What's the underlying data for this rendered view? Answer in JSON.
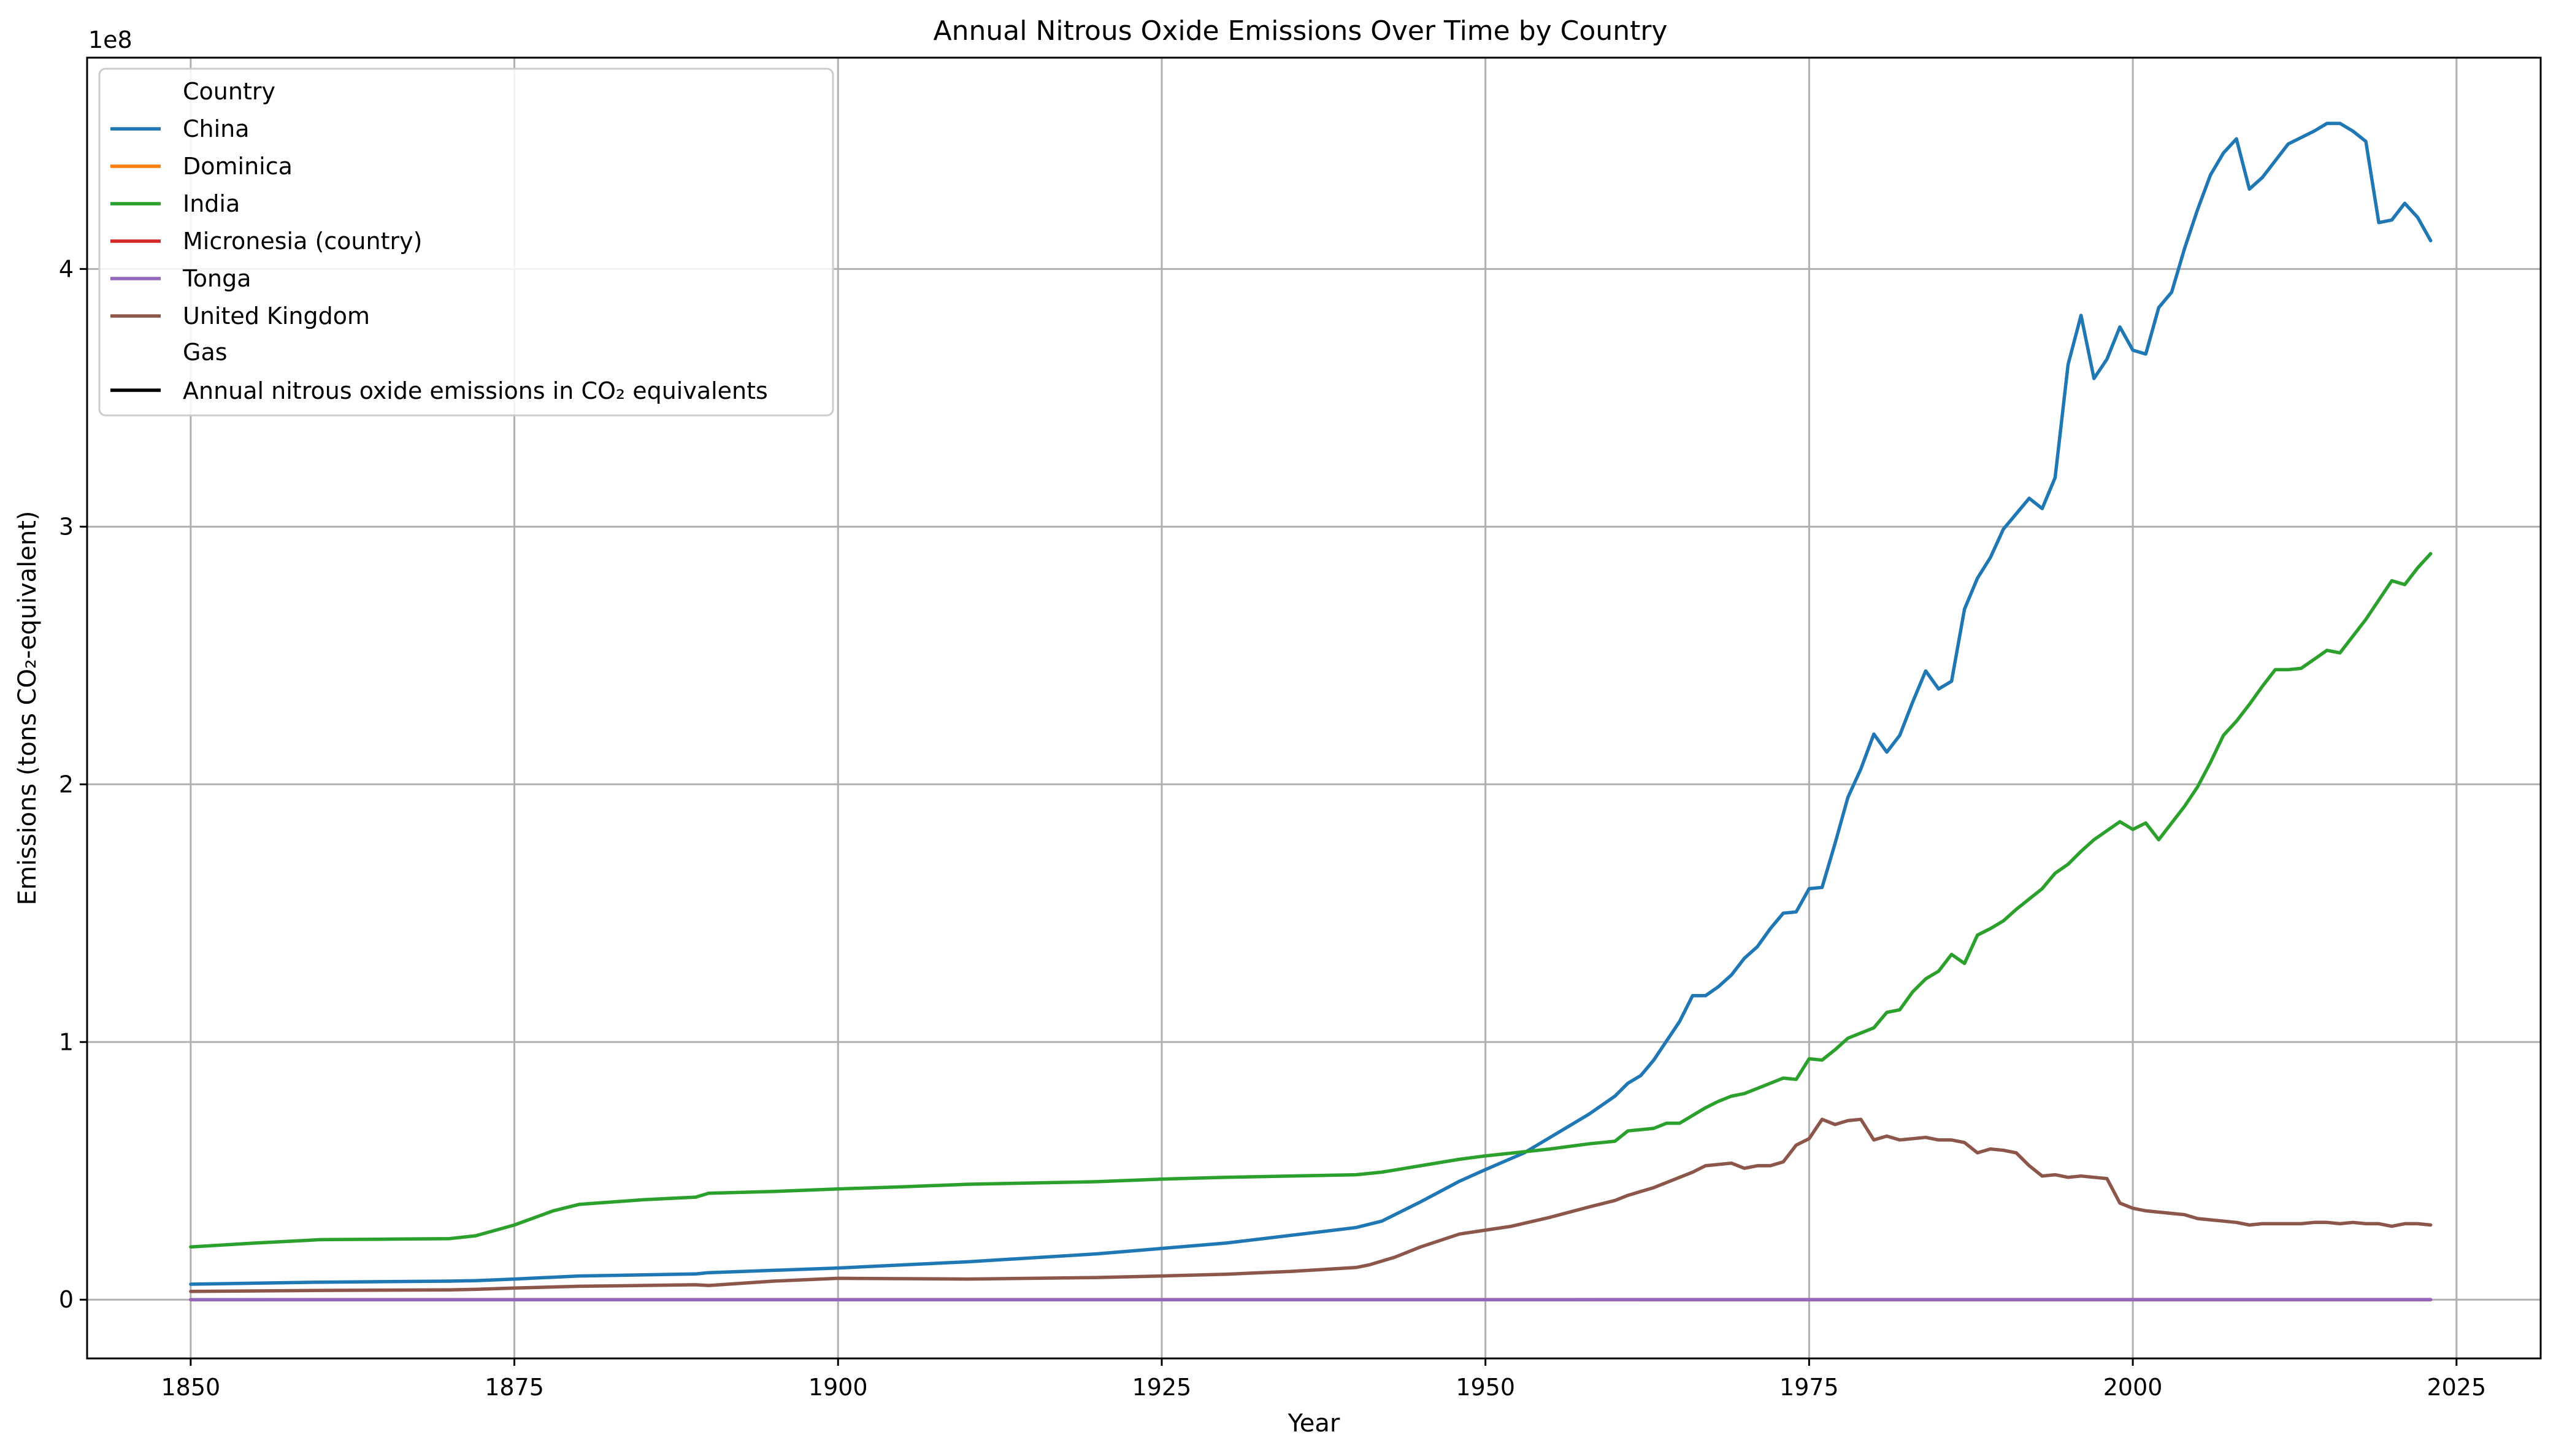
{
  "chart_data": {
    "type": "line",
    "title": "Annual Nitrous Oxide Emissions Over Time by Country",
    "xlabel": "Year",
    "ylabel": "Emissions (tons CO₂-equivalent)",
    "y_offset_label": "1e8",
    "xlim": [
      1842,
      2031.5
    ],
    "ylim": [
      -22800000,
      482000000
    ],
    "x_ticks": [
      1850,
      1875,
      1900,
      1925,
      1950,
      1975,
      2000,
      2025
    ],
    "x_tick_labels": [
      "1850",
      "1875",
      "1900",
      "1925",
      "1950",
      "1975",
      "2000",
      "2025"
    ],
    "y_ticks": [
      0,
      100000000,
      200000000,
      300000000,
      400000000
    ],
    "y_tick_labels": [
      "0",
      "1",
      "2",
      "3",
      "4"
    ],
    "grid": true,
    "legend": {
      "placement": "top-left",
      "country_title": "Country",
      "gas_title": "Gas",
      "gas_entry": "Annual nitrous oxide emissions in CO₂ equivalents",
      "gas_color": "#000000"
    },
    "series": [
      {
        "name": "China",
        "color": "#1f77b4",
        "points": [
          [
            1850,
            6000000
          ],
          [
            1860,
            6800000
          ],
          [
            1870,
            7200000
          ],
          [
            1872,
            7400000
          ],
          [
            1875,
            8000000
          ],
          [
            1880,
            9200000
          ],
          [
            1889,
            10000000
          ],
          [
            1890,
            10500000
          ],
          [
            1900,
            12300000
          ],
          [
            1910,
            14700000
          ],
          [
            1920,
            17800000
          ],
          [
            1930,
            22000000
          ],
          [
            1940,
            28000000
          ],
          [
            1942,
            30500000
          ],
          [
            1945,
            38000000
          ],
          [
            1948,
            46000000
          ],
          [
            1950,
            50500000
          ],
          [
            1953,
            57000000
          ],
          [
            1955,
            63000000
          ],
          [
            1958,
            72000000
          ],
          [
            1960,
            79000000
          ],
          [
            1961,
            84000000
          ],
          [
            1962,
            87000000
          ],
          [
            1963,
            93000000
          ],
          [
            1964,
            100500000
          ],
          [
            1965,
            108000000
          ],
          [
            1966,
            118000000
          ],
          [
            1967,
            118000000
          ],
          [
            1968,
            121500000
          ],
          [
            1969,
            126000000
          ],
          [
            1970,
            132500000
          ],
          [
            1971,
            137000000
          ],
          [
            1972,
            144000000
          ],
          [
            1973,
            150000000
          ],
          [
            1974,
            150500000
          ],
          [
            1975,
            159500000
          ],
          [
            1976,
            160000000
          ],
          [
            1977,
            177000000
          ],
          [
            1978,
            195000000
          ],
          [
            1979,
            206000000
          ],
          [
            1980,
            219500000
          ],
          [
            1981,
            212500000
          ],
          [
            1982,
            219000000
          ],
          [
            1983,
            232000000
          ],
          [
            1984,
            244000000
          ],
          [
            1985,
            237000000
          ],
          [
            1986,
            240000000
          ],
          [
            1987,
            268000000
          ],
          [
            1988,
            280000000
          ],
          [
            1989,
            288000000
          ],
          [
            1990,
            299000000
          ],
          [
            1991,
            305000000
          ],
          [
            1992,
            311000000
          ],
          [
            1993,
            307000000
          ],
          [
            1994,
            319000000
          ],
          [
            1995,
            363000000
          ],
          [
            1996,
            382000000
          ],
          [
            1997,
            357500000
          ],
          [
            1998,
            365000000
          ],
          [
            1999,
            377500000
          ],
          [
            2000,
            368500000
          ],
          [
            2001,
            367000000
          ],
          [
            2002,
            385000000
          ],
          [
            2003,
            391000000
          ],
          [
            2004,
            408000000
          ],
          [
            2005,
            423000000
          ],
          [
            2006,
            436500000
          ],
          [
            2007,
            445000000
          ],
          [
            2008,
            450500000
          ],
          [
            2009,
            431000000
          ],
          [
            2010,
            435500000
          ],
          [
            2011,
            442000000
          ],
          [
            2012,
            448500000
          ],
          [
            2013,
            451000000
          ],
          [
            2014,
            453500000
          ],
          [
            2015,
            456500000
          ],
          [
            2016,
            456500000
          ],
          [
            2017,
            453500000
          ],
          [
            2018,
            449500000
          ],
          [
            2019,
            418000000
          ],
          [
            2020,
            419000000
          ],
          [
            2021,
            425500000
          ],
          [
            2022,
            420000000
          ],
          [
            2023,
            411000000
          ]
        ]
      },
      {
        "name": "Dominica",
        "color": "#ff7f0e",
        "points": [
          [
            1850,
            20000
          ],
          [
            1900,
            25000
          ],
          [
            1950,
            35000
          ],
          [
            2000,
            45000
          ],
          [
            2023,
            40000
          ]
        ]
      },
      {
        "name": "India",
        "color": "#2ca02c",
        "points": [
          [
            1850,
            20500000
          ],
          [
            1855,
            22000000
          ],
          [
            1860,
            23300000
          ],
          [
            1865,
            23500000
          ],
          [
            1870,
            23700000
          ],
          [
            1872,
            24800000
          ],
          [
            1875,
            29000000
          ],
          [
            1878,
            34500000
          ],
          [
            1880,
            37000000
          ],
          [
            1885,
            38800000
          ],
          [
            1889,
            39800000
          ],
          [
            1890,
            41300000
          ],
          [
            1895,
            42000000
          ],
          [
            1900,
            43000000
          ],
          [
            1905,
            43800000
          ],
          [
            1910,
            44800000
          ],
          [
            1920,
            45800000
          ],
          [
            1925,
            46800000
          ],
          [
            1930,
            47500000
          ],
          [
            1940,
            48500000
          ],
          [
            1942,
            49500000
          ],
          [
            1945,
            52000000
          ],
          [
            1948,
            54500000
          ],
          [
            1950,
            55800000
          ],
          [
            1955,
            58500000
          ],
          [
            1958,
            60500000
          ],
          [
            1960,
            61500000
          ],
          [
            1961,
            65500000
          ],
          [
            1962,
            66000000
          ],
          [
            1963,
            66500000
          ],
          [
            1964,
            68500000
          ],
          [
            1965,
            68500000
          ],
          [
            1966,
            71500000
          ],
          [
            1967,
            74500000
          ],
          [
            1968,
            77000000
          ],
          [
            1969,
            79000000
          ],
          [
            1970,
            80000000
          ],
          [
            1971,
            82000000
          ],
          [
            1972,
            84000000
          ],
          [
            1973,
            86000000
          ],
          [
            1974,
            85500000
          ],
          [
            1975,
            93500000
          ],
          [
            1976,
            93000000
          ],
          [
            1977,
            97000000
          ],
          [
            1978,
            101500000
          ],
          [
            1979,
            103500000
          ],
          [
            1980,
            105500000
          ],
          [
            1981,
            111500000
          ],
          [
            1982,
            112500000
          ],
          [
            1983,
            119500000
          ],
          [
            1984,
            124500000
          ],
          [
            1985,
            127500000
          ],
          [
            1986,
            134000000
          ],
          [
            1987,
            130500000
          ],
          [
            1988,
            141500000
          ],
          [
            1989,
            144000000
          ],
          [
            1990,
            147000000
          ],
          [
            1991,
            151500000
          ],
          [
            1992,
            155500000
          ],
          [
            1993,
            159500000
          ],
          [
            1994,
            165500000
          ],
          [
            1995,
            169000000
          ],
          [
            1996,
            174000000
          ],
          [
            1997,
            178500000
          ],
          [
            1998,
            182000000
          ],
          [
            1999,
            185500000
          ],
          [
            2000,
            182500000
          ],
          [
            2001,
            185000000
          ],
          [
            2002,
            178500000
          ],
          [
            2003,
            185000000
          ],
          [
            2004,
            191500000
          ],
          [
            2005,
            199000000
          ],
          [
            2006,
            208500000
          ],
          [
            2007,
            219000000
          ],
          [
            2008,
            224500000
          ],
          [
            2009,
            231000000
          ],
          [
            2010,
            238000000
          ],
          [
            2011,
            244500000
          ],
          [
            2012,
            244500000
          ],
          [
            2013,
            245000000
          ],
          [
            2014,
            248500000
          ],
          [
            2015,
            252000000
          ],
          [
            2016,
            251000000
          ],
          [
            2017,
            257500000
          ],
          [
            2018,
            264000000
          ],
          [
            2019,
            271500000
          ],
          [
            2020,
            279000000
          ],
          [
            2021,
            277500000
          ],
          [
            2022,
            284000000
          ],
          [
            2023,
            289500000
          ]
        ]
      },
      {
        "name": "Micronesia (country)",
        "color": "#d62728",
        "points": [
          [
            1850,
            5000
          ],
          [
            1900,
            6000
          ],
          [
            1950,
            10000
          ],
          [
            2000,
            15000
          ],
          [
            2023,
            15000
          ]
        ]
      },
      {
        "name": "Tonga",
        "color": "#9467bd",
        "points": [
          [
            1850,
            5000
          ],
          [
            1900,
            8000
          ],
          [
            1950,
            15000
          ],
          [
            2000,
            25000
          ],
          [
            2023,
            25000
          ]
        ]
      },
      {
        "name": "United Kingdom",
        "color": "#8c564b",
        "points": [
          [
            1850,
            3200000
          ],
          [
            1860,
            3600000
          ],
          [
            1870,
            3800000
          ],
          [
            1872,
            4000000
          ],
          [
            1875,
            4500000
          ],
          [
            1880,
            5200000
          ],
          [
            1889,
            5800000
          ],
          [
            1890,
            5500000
          ],
          [
            1895,
            7200000
          ],
          [
            1900,
            8300000
          ],
          [
            1910,
            8000000
          ],
          [
            1920,
            8600000
          ],
          [
            1925,
            9200000
          ],
          [
            1930,
            9900000
          ],
          [
            1935,
            11000000
          ],
          [
            1940,
            12500000
          ],
          [
            1941,
            13500000
          ],
          [
            1943,
            16500000
          ],
          [
            1945,
            20500000
          ],
          [
            1948,
            25500000
          ],
          [
            1950,
            27000000
          ],
          [
            1952,
            28500000
          ],
          [
            1955,
            32000000
          ],
          [
            1958,
            36000000
          ],
          [
            1960,
            38500000
          ],
          [
            1961,
            40500000
          ],
          [
            1962,
            42000000
          ],
          [
            1963,
            43500000
          ],
          [
            1964,
            45500000
          ],
          [
            1965,
            47500000
          ],
          [
            1966,
            49500000
          ],
          [
            1967,
            52000000
          ],
          [
            1968,
            52500000
          ],
          [
            1969,
            53000000
          ],
          [
            1970,
            51000000
          ],
          [
            1971,
            52000000
          ],
          [
            1972,
            52000000
          ],
          [
            1973,
            53500000
          ],
          [
            1974,
            60000000
          ],
          [
            1975,
            62500000
          ],
          [
            1976,
            70000000
          ],
          [
            1977,
            68000000
          ],
          [
            1978,
            69500000
          ],
          [
            1979,
            70000000
          ],
          [
            1980,
            62000000
          ],
          [
            1981,
            63500000
          ],
          [
            1982,
            62000000
          ],
          [
            1983,
            62500000
          ],
          [
            1984,
            63000000
          ],
          [
            1985,
            62000000
          ],
          [
            1986,
            62000000
          ],
          [
            1987,
            61000000
          ],
          [
            1988,
            57000000
          ],
          [
            1989,
            58500000
          ],
          [
            1990,
            58000000
          ],
          [
            1991,
            57000000
          ],
          [
            1992,
            52000000
          ],
          [
            1993,
            48000000
          ],
          [
            1994,
            48500000
          ],
          [
            1995,
            47500000
          ],
          [
            1996,
            48000000
          ],
          [
            1997,
            47500000
          ],
          [
            1998,
            47000000
          ],
          [
            1999,
            37500000
          ],
          [
            2000,
            35500000
          ],
          [
            2001,
            34500000
          ],
          [
            2002,
            34000000
          ],
          [
            2003,
            33500000
          ],
          [
            2004,
            33000000
          ],
          [
            2005,
            31500000
          ],
          [
            2006,
            31000000
          ],
          [
            2007,
            30500000
          ],
          [
            2008,
            30000000
          ],
          [
            2009,
            29000000
          ],
          [
            2010,
            29500000
          ],
          [
            2011,
            29500000
          ],
          [
            2012,
            29500000
          ],
          [
            2013,
            29500000
          ],
          [
            2014,
            30000000
          ],
          [
            2015,
            30000000
          ],
          [
            2016,
            29500000
          ],
          [
            2017,
            30000000
          ],
          [
            2018,
            29500000
          ],
          [
            2019,
            29500000
          ],
          [
            2020,
            28500000
          ],
          [
            2021,
            29500000
          ],
          [
            2022,
            29500000
          ],
          [
            2023,
            29000000
          ]
        ]
      }
    ]
  }
}
